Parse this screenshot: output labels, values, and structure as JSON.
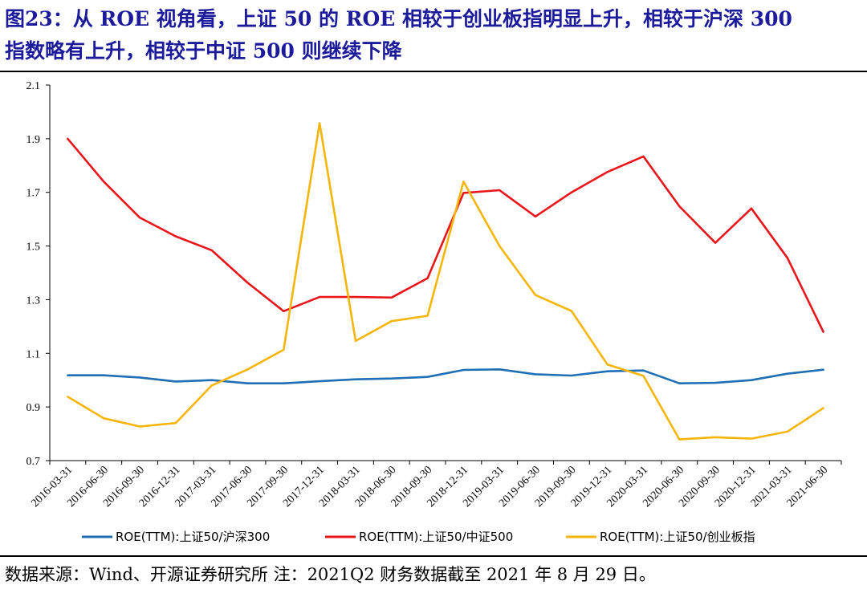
{
  "figure": {
    "title_line1": "图23：从 ROE 视角看，上证 50 的 ROE 相较于创业板指明显上升，相较于沪深 300",
    "title_line2": "指数略有上升，相较于中证 500 则继续下降",
    "source": "数据来源：Wind、开源证券研究所  注：2021Q2 财务数据截至 2021 年 8 月 29 日。"
  },
  "chart_data": {
    "type": "line",
    "ylim": [
      0.7,
      2.1
    ],
    "yticks": [
      0.7,
      0.9,
      1.1,
      1.3,
      1.5,
      1.7,
      1.9,
      2.1
    ],
    "ytick_labels": [
      "0.7",
      "0.9",
      "1.1",
      "1.3",
      "1.5",
      "1.7",
      "1.9",
      "2.1"
    ],
    "grid": false,
    "legend": "bottom",
    "categories": [
      "2016-03-31",
      "2016-06-30",
      "2016-09-30",
      "2016-12-31",
      "2017-03-31",
      "2017-06-30",
      "2017-09-30",
      "2017-12-31",
      "2018-03-31",
      "2018-06-30",
      "2018-09-30",
      "2018-12-31",
      "2019-03-31",
      "2019-06-30",
      "2019-09-30",
      "2019-12-31",
      "2020-03-31",
      "2020-06-30",
      "2020-09-30",
      "2020-12-31",
      "2021-03-31",
      "2021-06-30"
    ],
    "series": [
      {
        "name": "ROE(TTM):上证50/沪深300",
        "color": "#1f6fb5",
        "values": [
          1.018,
          1.018,
          1.01,
          0.995,
          1.0,
          0.988,
          0.988,
          0.996,
          1.003,
          1.006,
          1.012,
          1.038,
          1.04,
          1.022,
          1.017,
          1.033,
          1.036,
          0.988,
          0.99,
          1.0,
          1.024,
          1.039
        ]
      },
      {
        "name": "ROE(TTM):上证50/中证500",
        "color": "#e8161a",
        "values": [
          1.9,
          1.74,
          1.606,
          1.536,
          1.484,
          1.363,
          1.257,
          1.31,
          1.31,
          1.308,
          1.38,
          1.698,
          1.708,
          1.61,
          1.7,
          1.776,
          1.834,
          1.648,
          1.512,
          1.64,
          1.456,
          1.18
        ]
      },
      {
        "name": "ROE(TTM):上证50/创业板指",
        "color": "#f5b50a",
        "values": [
          0.938,
          0.858,
          0.827,
          0.84,
          0.98,
          1.04,
          1.113,
          1.958,
          1.146,
          1.22,
          1.24,
          1.74,
          1.5,
          1.317,
          1.258,
          1.058,
          1.016,
          0.779,
          0.787,
          0.782,
          0.808,
          0.896
        ]
      }
    ]
  }
}
